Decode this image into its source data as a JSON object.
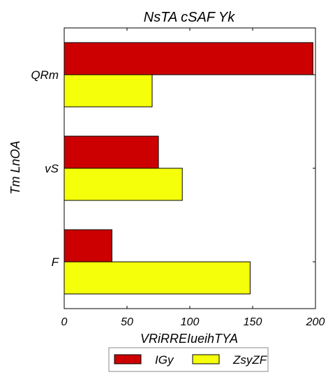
{
  "chart_data": {
    "type": "bar",
    "orientation": "horizontal",
    "title": "NsTA cSAF Yk",
    "xlabel": "VRiRREIueihTYA",
    "ylabel": "Tm LnOA",
    "categories": [
      "QRm",
      "vS",
      "F"
    ],
    "series": [
      {
        "name": "IGy",
        "color": "#cc0000",
        "values": [
          198,
          75,
          38
        ]
      },
      {
        "name": "ZsyZF",
        "color": "#f5ff0a",
        "values": [
          70,
          94,
          148
        ]
      }
    ],
    "xlim": [
      0,
      200
    ],
    "xticks": [
      "0",
      "50",
      "100",
      "150",
      "200"
    ],
    "grid": false,
    "legend_position": "bottom"
  }
}
